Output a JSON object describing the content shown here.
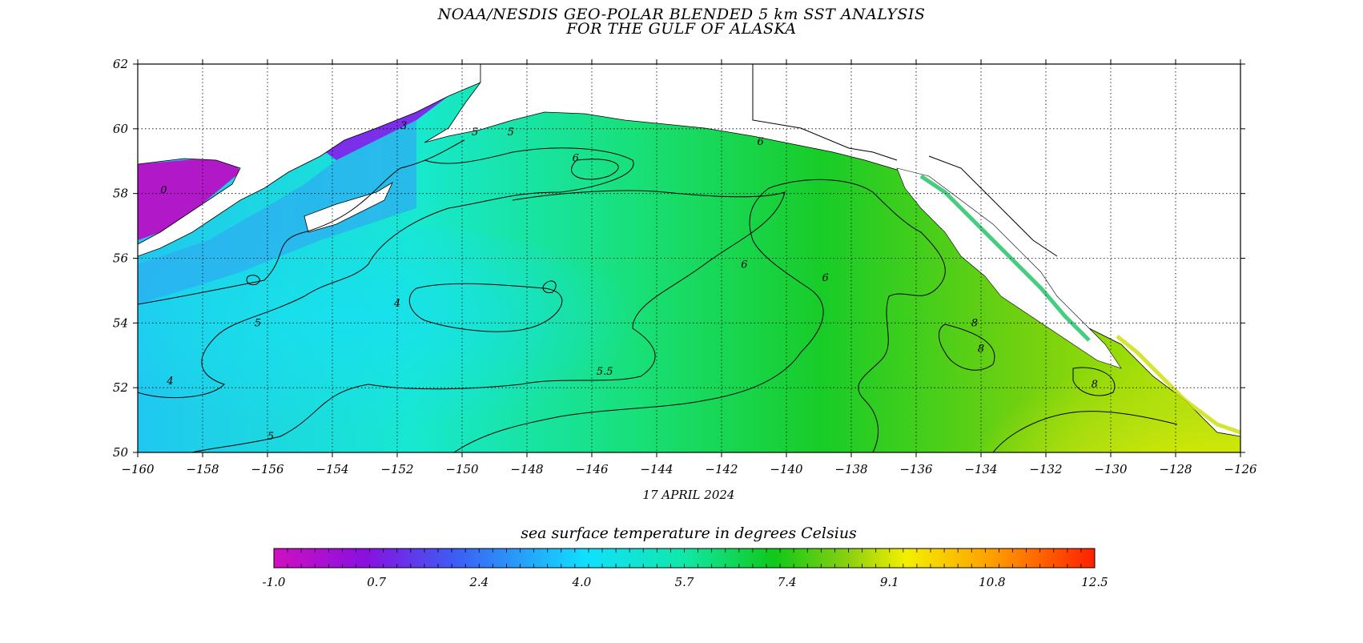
{
  "header": {
    "title_line1": "NOAA/NESDIS GEO-POLAR BLENDED 5 km SST ANALYSIS",
    "title_line2": "FOR THE GULF OF ALASKA"
  },
  "map": {
    "lon_range": [
      -160,
      -126
    ],
    "lat_range": [
      50,
      62
    ],
    "lon_ticks": [
      "-160",
      "-158",
      "-156",
      "-154",
      "-152",
      "-150",
      "-148",
      "-146",
      "-144",
      "-142",
      "-140",
      "-138",
      "-136",
      "-134",
      "-132",
      "-130",
      "-128",
      "-126"
    ],
    "lat_ticks": [
      "62",
      "60",
      "58",
      "56",
      "54",
      "52",
      "50"
    ],
    "date": "17 APRIL 2024",
    "grid": true,
    "contour_labels": [
      "0",
      "3",
      "5",
      "6",
      "6",
      "5",
      "4",
      "5",
      "4",
      "5.5",
      "5",
      "6",
      "6",
      "8",
      "8",
      "8"
    ]
  },
  "colorbar": {
    "title": "sea surface temperature in degrees Celsius",
    "labels": [
      "-1.0",
      "0.7",
      "2.4",
      "4.0",
      "5.7",
      "7.4",
      "9.1",
      "10.8",
      "12.5"
    ],
    "colors": [
      "#d010c0",
      "#8a10e0",
      "#3d5cf5",
      "#10e0ff",
      "#10e8a8",
      "#10c818",
      "#8cd010",
      "#f4f000",
      "#ff9a00",
      "#ff2000"
    ]
  }
}
